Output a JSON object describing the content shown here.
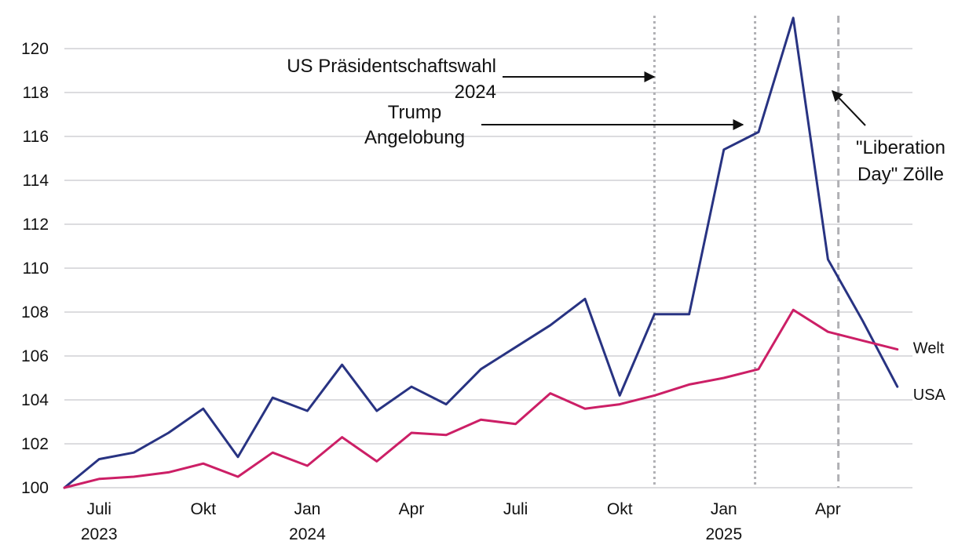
{
  "chart_data": {
    "type": "line",
    "title": "",
    "xlabel": "",
    "ylabel": "",
    "ylim": [
      100,
      121.5
    ],
    "yticks": [
      100,
      102,
      104,
      106,
      108,
      110,
      112,
      114,
      116,
      118,
      120
    ],
    "grid": "horizontal",
    "x_months": [
      "2023-06",
      "2023-07",
      "2023-08",
      "2023-09",
      "2023-10",
      "2023-11",
      "2023-12",
      "2024-01",
      "2024-02",
      "2024-03",
      "2024-04",
      "2024-05",
      "2024-06",
      "2024-07",
      "2024-08",
      "2024-09",
      "2024-10",
      "2024-11",
      "2024-12",
      "2025-01",
      "2025-02",
      "2025-03",
      "2025-04",
      "2025-05",
      "2025-06"
    ],
    "x_ticks": [
      {
        "index": 1,
        "label": "Juli",
        "year": "2023"
      },
      {
        "index": 4,
        "label": "Okt",
        "year": ""
      },
      {
        "index": 7,
        "label": "Jan",
        "year": "2024"
      },
      {
        "index": 10,
        "label": "Apr",
        "year": ""
      },
      {
        "index": 13,
        "label": "Juli",
        "year": ""
      },
      {
        "index": 16,
        "label": "Okt",
        "year": ""
      },
      {
        "index": 19,
        "label": "Jan",
        "year": "2025"
      },
      {
        "index": 22,
        "label": "Apr",
        "year": ""
      }
    ],
    "series": [
      {
        "name": "USA",
        "color": "#283382",
        "values": [
          100,
          101.3,
          101.6,
          102.5,
          103.6,
          101.4,
          104.1,
          103.5,
          105.6,
          103.5,
          104.6,
          103.8,
          105.4,
          106.4,
          107.4,
          108.6,
          104.2,
          107.9,
          107.9,
          115.4,
          116.2,
          121.4,
          110.4,
          107.6,
          104.6
        ]
      },
      {
        "name": "Welt",
        "color": "#cc1f66",
        "values": [
          100,
          100.4,
          100.5,
          100.7,
          101.1,
          100.5,
          101.6,
          101.0,
          102.3,
          101.2,
          102.5,
          102.4,
          103.1,
          102.9,
          104.3,
          103.6,
          103.8,
          104.2,
          104.7,
          105.0,
          105.4,
          108.1,
          107.1,
          106.7,
          106.3
        ]
      }
    ],
    "annotations": [
      {
        "label_lines": [
          "US Präsidentschaftswahl",
          "2024"
        ],
        "x_index": 17.0,
        "line_style": "dotted"
      },
      {
        "label_lines": [
          "Trump",
          "Angelobung"
        ],
        "x_index": 19.9,
        "line_style": "dotted"
      },
      {
        "label_lines": [
          "\"Liberation",
          "Day\" Zölle"
        ],
        "x_index": 22.3,
        "line_style": "dashed"
      }
    ]
  }
}
